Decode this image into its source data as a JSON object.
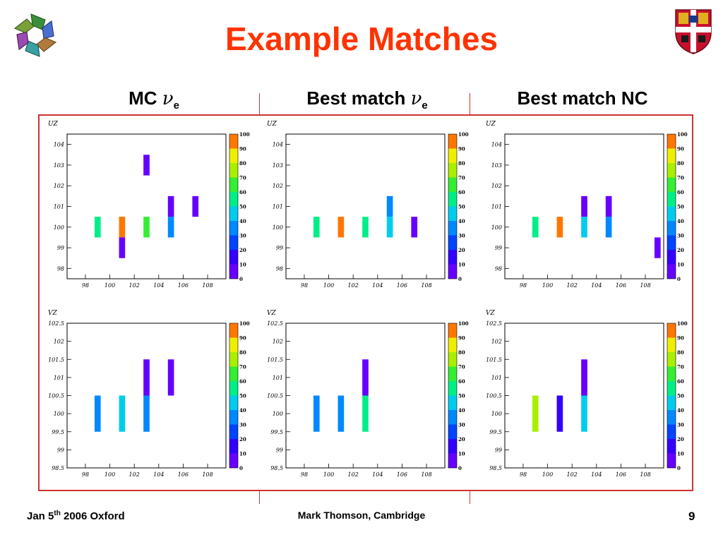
{
  "slide": {
    "title": "Example Matches",
    "columns": [
      {
        "main": "MC ",
        "nu": "ν",
        "sub": "e"
      },
      {
        "main": "Best match ",
        "nu": "ν",
        "sub": "e"
      },
      {
        "main": "Best match NC",
        "nu": "",
        "sub": ""
      }
    ],
    "footer_left": {
      "main": "Jan 5",
      "sup": "th",
      "rest": " 2006 Oxford"
    },
    "footer_center": "Mark Thomson, Cambridge",
    "page_number": "9"
  },
  "chart_data": [
    {
      "type": "heatmap",
      "id": "uz-mc",
      "ylabel": "UZ",
      "x_ticks": [
        98,
        100,
        102,
        104,
        106,
        108
      ],
      "y_ticks": [
        98,
        99,
        100,
        101,
        102,
        103,
        104
      ],
      "xlim": [
        96.5,
        109.5
      ],
      "ylim": [
        97.5,
        104.5
      ],
      "colorbar": {
        "ticks": [
          0,
          10,
          20,
          30,
          40,
          50,
          60,
          70,
          80,
          90,
          100
        ],
        "range": [
          0,
          100
        ]
      },
      "cells": [
        {
          "x": 99,
          "y": 100,
          "h": 1,
          "value": 55
        },
        {
          "x": 101,
          "y": 100,
          "h": 1,
          "value": 95
        },
        {
          "x": 101,
          "y": 99,
          "h": 1,
          "value": 3
        },
        {
          "x": 103,
          "y": 103,
          "h": 1,
          "value": 3
        },
        {
          "x": 103,
          "y": 100,
          "h": 1,
          "value": 68
        },
        {
          "x": 105,
          "y": 101,
          "h": 1,
          "value": 3
        },
        {
          "x": 105,
          "y": 100,
          "h": 1,
          "value": 32
        },
        {
          "x": 107,
          "y": 101,
          "h": 1,
          "value": 3
        }
      ]
    },
    {
      "type": "heatmap",
      "id": "uz-best-nue",
      "ylabel": "UZ",
      "x_ticks": [
        98,
        100,
        102,
        104,
        106,
        108
      ],
      "y_ticks": [
        98,
        99,
        100,
        101,
        102,
        103,
        104
      ],
      "xlim": [
        96.5,
        109.5
      ],
      "ylim": [
        97.5,
        104.5
      ],
      "colorbar": {
        "ticks": [
          0,
          10,
          20,
          30,
          40,
          50,
          60,
          70,
          80,
          90,
          100
        ],
        "range": [
          0,
          100
        ]
      },
      "cells": [
        {
          "x": 99,
          "y": 100,
          "h": 1,
          "value": 55
        },
        {
          "x": 101,
          "y": 100,
          "h": 1,
          "value": 95
        },
        {
          "x": 103,
          "y": 100,
          "h": 1,
          "value": 55
        },
        {
          "x": 105,
          "y": 101,
          "h": 1,
          "value": 32
        },
        {
          "x": 105,
          "y": 100,
          "h": 1,
          "value": 40
        },
        {
          "x": 107,
          "y": 100,
          "h": 1,
          "value": 8
        }
      ]
    },
    {
      "type": "heatmap",
      "id": "uz-best-nc",
      "ylabel": "UZ",
      "x_ticks": [
        98,
        100,
        102,
        104,
        106,
        108
      ],
      "y_ticks": [
        98,
        99,
        100,
        101,
        102,
        103,
        104
      ],
      "xlim": [
        96.5,
        109.5
      ],
      "ylim": [
        97.5,
        104.5
      ],
      "colorbar": {
        "ticks": [
          0,
          10,
          20,
          30,
          40,
          50,
          60,
          70,
          80,
          90,
          100
        ],
        "range": [
          0,
          100
        ]
      },
      "cells": [
        {
          "x": 99,
          "y": 100,
          "h": 1,
          "value": 55
        },
        {
          "x": 101,
          "y": 100,
          "h": 1,
          "value": 95
        },
        {
          "x": 103,
          "y": 101,
          "h": 1,
          "value": 3
        },
        {
          "x": 103,
          "y": 100,
          "h": 1,
          "value": 45
        },
        {
          "x": 105,
          "y": 101,
          "h": 1,
          "value": 3
        },
        {
          "x": 105,
          "y": 100,
          "h": 1,
          "value": 32
        },
        {
          "x": 109,
          "y": 99,
          "h": 1,
          "value": 3
        }
      ]
    },
    {
      "type": "heatmap",
      "id": "vz-mc",
      "ylabel": "VZ",
      "x_ticks": [
        98,
        100,
        102,
        104,
        106,
        108
      ],
      "y_ticks": [
        98.5,
        99,
        99.5,
        100,
        100.5,
        101,
        101.5,
        102,
        102.5
      ],
      "xlim": [
        96.5,
        109.5
      ],
      "ylim": [
        98.5,
        102.5
      ],
      "colorbar": {
        "ticks": [
          0,
          10,
          20,
          30,
          40,
          50,
          60,
          70,
          80,
          90,
          100
        ],
        "range": [
          0,
          100
        ]
      },
      "cells": [
        {
          "x": 99,
          "y": 100,
          "h": 1,
          "value": 38
        },
        {
          "x": 101,
          "y": 100,
          "h": 1,
          "value": 40
        },
        {
          "x": 103,
          "y": 101,
          "h": 1,
          "value": 3
        },
        {
          "x": 103,
          "y": 100,
          "h": 1,
          "value": 38
        },
        {
          "x": 105,
          "y": 101,
          "h": 1,
          "value": 3
        }
      ]
    },
    {
      "type": "heatmap",
      "id": "vz-best-nue",
      "ylabel": "VZ",
      "x_ticks": [
        98,
        100,
        102,
        104,
        106,
        108
      ],
      "y_ticks": [
        98.5,
        99,
        99.5,
        100,
        100.5,
        101,
        101.5,
        102,
        102.5
      ],
      "xlim": [
        96.5,
        109.5
      ],
      "ylim": [
        98.5,
        102.5
      ],
      "colorbar": {
        "ticks": [
          0,
          10,
          20,
          30,
          40,
          50,
          60,
          70,
          80,
          90,
          100
        ],
        "range": [
          0,
          100
        ]
      },
      "cells": [
        {
          "x": 99,
          "y": 100,
          "h": 1,
          "value": 38
        },
        {
          "x": 101,
          "y": 100,
          "h": 1,
          "value": 32
        },
        {
          "x": 103,
          "y": 101,
          "h": 1,
          "value": 3
        },
        {
          "x": 103,
          "y": 100,
          "h": 1,
          "value": 52
        }
      ]
    },
    {
      "type": "heatmap",
      "id": "vz-best-nc",
      "ylabel": "VZ",
      "x_ticks": [
        98,
        100,
        102,
        104,
        106,
        108
      ],
      "y_ticks": [
        98.5,
        99,
        99.5,
        100,
        100.5,
        101,
        101.5,
        102,
        102.5
      ],
      "xlim": [
        96.5,
        109.5
      ],
      "ylim": [
        98.5,
        102.5
      ],
      "colorbar": {
        "ticks": [
          0,
          10,
          20,
          30,
          40,
          50,
          60,
          70,
          80,
          90,
          100
        ],
        "range": [
          0,
          100
        ]
      },
      "cells": [
        {
          "x": 99,
          "y": 100,
          "h": 1,
          "value": 75
        },
        {
          "x": 101,
          "y": 100,
          "h": 1,
          "value": 18
        },
        {
          "x": 103,
          "y": 101,
          "h": 1,
          "value": 3
        },
        {
          "x": 103,
          "y": 100,
          "h": 1,
          "value": 42
        }
      ]
    }
  ]
}
